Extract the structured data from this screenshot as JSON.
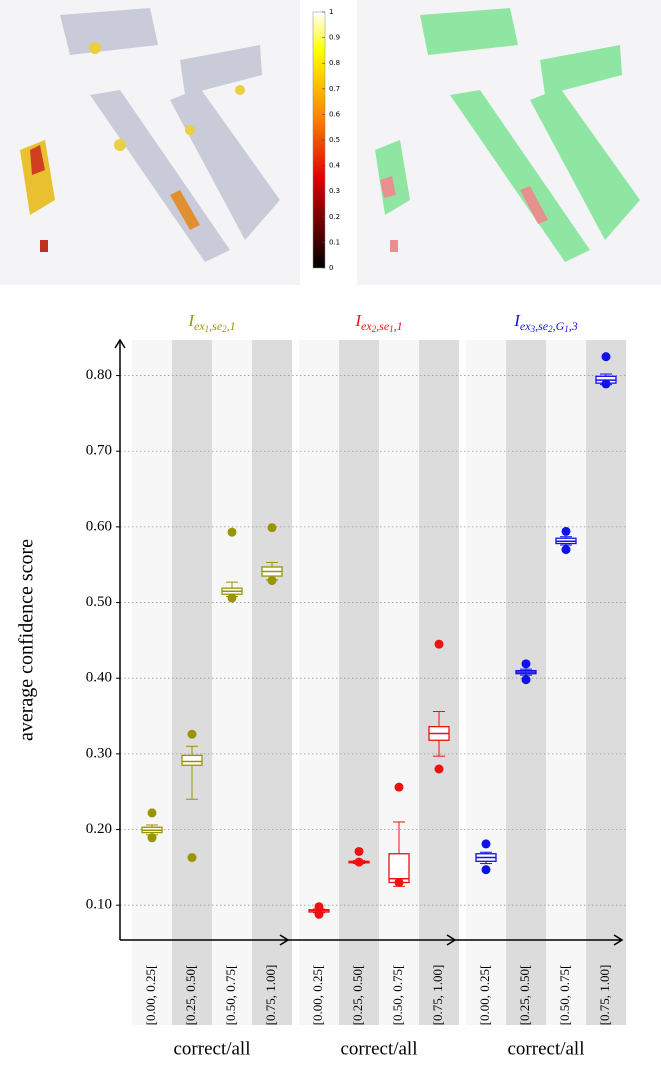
{
  "colorbar": {
    "lim": [
      0,
      1
    ],
    "ticks": [
      0,
      0.1,
      0.2,
      0.3,
      0.4,
      0.5,
      0.6,
      0.7,
      0.8,
      0.9,
      1
    ]
  },
  "chart_data": [
    {
      "type": "box",
      "title": [
        "I",
        "ex",
        "1",
        ",se",
        "2",
        ",1"
      ],
      "title_levels": [
        0,
        1,
        2,
        1,
        2,
        1
      ],
      "color": "#9a9400",
      "ylabel": "average confidence score",
      "xlabel": "correct/all",
      "grid": true,
      "ylim": [
        0.054,
        0.847
      ],
      "yticks": [
        {
          "value": 0.1,
          "label": "0.10"
        },
        {
          "value": 0.2,
          "label": "0.20"
        },
        {
          "value": 0.3,
          "label": "0.30"
        },
        {
          "value": 0.4,
          "label": "0.40"
        },
        {
          "value": 0.5,
          "label": "0.50"
        },
        {
          "value": 0.6,
          "label": "0.60"
        },
        {
          "value": 0.7,
          "label": "0.70"
        },
        {
          "value": 0.8,
          "label": "0.80"
        }
      ],
      "categories": [
        "[0.00, 0.25[",
        "[0.25, 0.50[",
        "[0.50, 0.75[",
        "[0.75, 1.00]"
      ],
      "boxes": [
        {
          "whislo": 0.193,
          "q1": 0.196,
          "med": 0.199,
          "q3": 0.203,
          "whishi": 0.206,
          "fliers": [
            0.222,
            0.189
          ]
        },
        {
          "whislo": 0.24,
          "q1": 0.285,
          "med": 0.29,
          "q3": 0.298,
          "whishi": 0.31,
          "fliers": [
            0.326,
            0.163
          ]
        },
        {
          "whislo": 0.508,
          "q1": 0.511,
          "med": 0.515,
          "q3": 0.519,
          "whishi": 0.527,
          "fliers": [
            0.593,
            0.506
          ]
        },
        {
          "whislo": 0.53,
          "q1": 0.535,
          "med": 0.541,
          "q3": 0.547,
          "whishi": 0.553,
          "fliers": [
            0.599,
            0.529
          ]
        }
      ]
    },
    {
      "type": "box",
      "title": [
        "I",
        "ex",
        "2",
        ",se",
        "1",
        ",1"
      ],
      "title_levels": [
        0,
        1,
        2,
        1,
        2,
        1
      ],
      "color": "#ee1111",
      "xlabel": "correct/all",
      "categories": [
        "[0.00, 0.25[",
        "[0.25, 0.50[",
        "[0.50, 0.75[",
        "[0.75, 1.00]"
      ],
      "boxes": [
        {
          "whislo": 0.09,
          "q1": 0.091,
          "med": 0.093,
          "q3": 0.094,
          "whishi": 0.095,
          "fliers": [
            0.098,
            0.088
          ]
        },
        {
          "whislo": 0.155,
          "q1": 0.156,
          "med": 0.157,
          "q3": 0.158,
          "whishi": 0.159,
          "fliers": [
            0.171,
            0.157
          ]
        },
        {
          "whislo": 0.125,
          "q1": 0.13,
          "med": 0.135,
          "q3": 0.168,
          "whishi": 0.21,
          "fliers": [
            0.256,
            0.13
          ]
        },
        {
          "whislo": 0.297,
          "q1": 0.318,
          "med": 0.327,
          "q3": 0.336,
          "whishi": 0.356,
          "fliers": [
            0.445,
            0.28
          ]
        }
      ]
    },
    {
      "type": "box",
      "title": [
        "I",
        "ex",
        "3",
        ",se",
        "2",
        ",G",
        "1",
        ",3"
      ],
      "title_levels": [
        0,
        1,
        2,
        1,
        2,
        1,
        2,
        1
      ],
      "color": "#1010ee",
      "xlabel": "correct/all",
      "categories": [
        "[0.00, 0.25[",
        "[0.25, 0.50[",
        "[0.50, 0.75[",
        "[0.75, 1.00]"
      ],
      "boxes": [
        {
          "whislo": 0.155,
          "q1": 0.158,
          "med": 0.163,
          "q3": 0.168,
          "whishi": 0.17,
          "fliers": [
            0.181,
            0.147
          ]
        },
        {
          "whislo": 0.404,
          "q1": 0.406,
          "med": 0.408,
          "q3": 0.41,
          "whishi": 0.412,
          "fliers": [
            0.419,
            0.398
          ]
        },
        {
          "whislo": 0.576,
          "q1": 0.578,
          "med": 0.581,
          "q3": 0.585,
          "whishi": 0.587,
          "fliers": [
            0.594,
            0.57
          ]
        },
        {
          "whislo": 0.788,
          "q1": 0.79,
          "med": 0.794,
          "q3": 0.799,
          "whishi": 0.802,
          "fliers": [
            0.825,
            0.789
          ]
        }
      ]
    }
  ]
}
